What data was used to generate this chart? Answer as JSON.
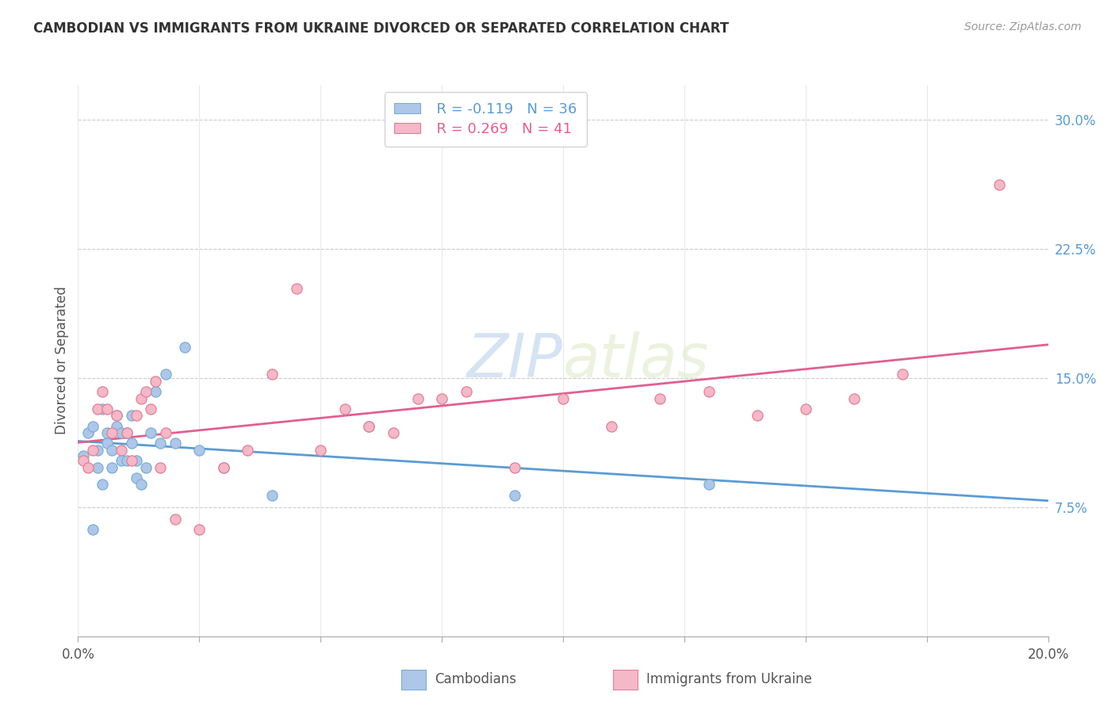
{
  "title": "CAMBODIAN VS IMMIGRANTS FROM UKRAINE DIVORCED OR SEPARATED CORRELATION CHART",
  "source_text": "Source: ZipAtlas.com",
  "watermark_text": "ZIPatlas",
  "ylabel": "Divorced or Separated",
  "xmin": 0.0,
  "xmax": 0.2,
  "ymin": 0.0,
  "ymax": 0.32,
  "x_ticks": [
    0.0,
    0.025,
    0.05,
    0.075,
    0.1,
    0.125,
    0.15,
    0.175,
    0.2
  ],
  "x_tick_labels": [
    "0.0%",
    "",
    "",
    "",
    "",
    "",
    "",
    "",
    "20.0%"
  ],
  "y_ticks": [
    0.075,
    0.15,
    0.225,
    0.3
  ],
  "y_tick_labels": [
    "7.5%",
    "15.0%",
    "22.5%",
    "30.0%"
  ],
  "legend_R_cambodian": "R = -0.119",
  "legend_N_cambodian": "N = 36",
  "legend_R_ukraine": "R = 0.269",
  "legend_N_ukraine": "N = 41",
  "color_cambodian": "#aec6e8",
  "color_ukraine": "#f4b8c8",
  "edge_cambodian": "#7aafd4",
  "edge_ukraine": "#e08098",
  "line_color_cambodian": "#5b9bd5",
  "line_color_ukraine": "#e06090",
  "cambodian_x": [
    0.001,
    0.002,
    0.003,
    0.003,
    0.004,
    0.004,
    0.005,
    0.005,
    0.006,
    0.006,
    0.007,
    0.007,
    0.008,
    0.008,
    0.009,
    0.009,
    0.01,
    0.01,
    0.011,
    0.011,
    0.012,
    0.012,
    0.013,
    0.014,
    0.015,
    0.016,
    0.017,
    0.018,
    0.02,
    0.022,
    0.025,
    0.03,
    0.04,
    0.06,
    0.09,
    0.13
  ],
  "cambodian_y": [
    0.105,
    0.118,
    0.062,
    0.122,
    0.108,
    0.098,
    0.132,
    0.088,
    0.112,
    0.118,
    0.108,
    0.098,
    0.122,
    0.128,
    0.102,
    0.118,
    0.102,
    0.118,
    0.112,
    0.128,
    0.102,
    0.092,
    0.088,
    0.098,
    0.118,
    0.142,
    0.112,
    0.152,
    0.112,
    0.168,
    0.108,
    0.098,
    0.082,
    0.122,
    0.082,
    0.088
  ],
  "ukraine_x": [
    0.001,
    0.002,
    0.003,
    0.004,
    0.005,
    0.006,
    0.007,
    0.008,
    0.009,
    0.01,
    0.011,
    0.012,
    0.013,
    0.014,
    0.015,
    0.016,
    0.017,
    0.018,
    0.02,
    0.025,
    0.03,
    0.035,
    0.04,
    0.045,
    0.05,
    0.055,
    0.06,
    0.065,
    0.07,
    0.075,
    0.08,
    0.09,
    0.1,
    0.11,
    0.12,
    0.13,
    0.14,
    0.15,
    0.16,
    0.17,
    0.19
  ],
  "ukraine_y": [
    0.102,
    0.098,
    0.108,
    0.132,
    0.142,
    0.132,
    0.118,
    0.128,
    0.108,
    0.118,
    0.102,
    0.128,
    0.138,
    0.142,
    0.132,
    0.148,
    0.098,
    0.118,
    0.068,
    0.062,
    0.098,
    0.108,
    0.152,
    0.202,
    0.108,
    0.132,
    0.122,
    0.118,
    0.138,
    0.138,
    0.142,
    0.098,
    0.138,
    0.122,
    0.138,
    0.142,
    0.128,
    0.132,
    0.138,
    0.152,
    0.262
  ]
}
